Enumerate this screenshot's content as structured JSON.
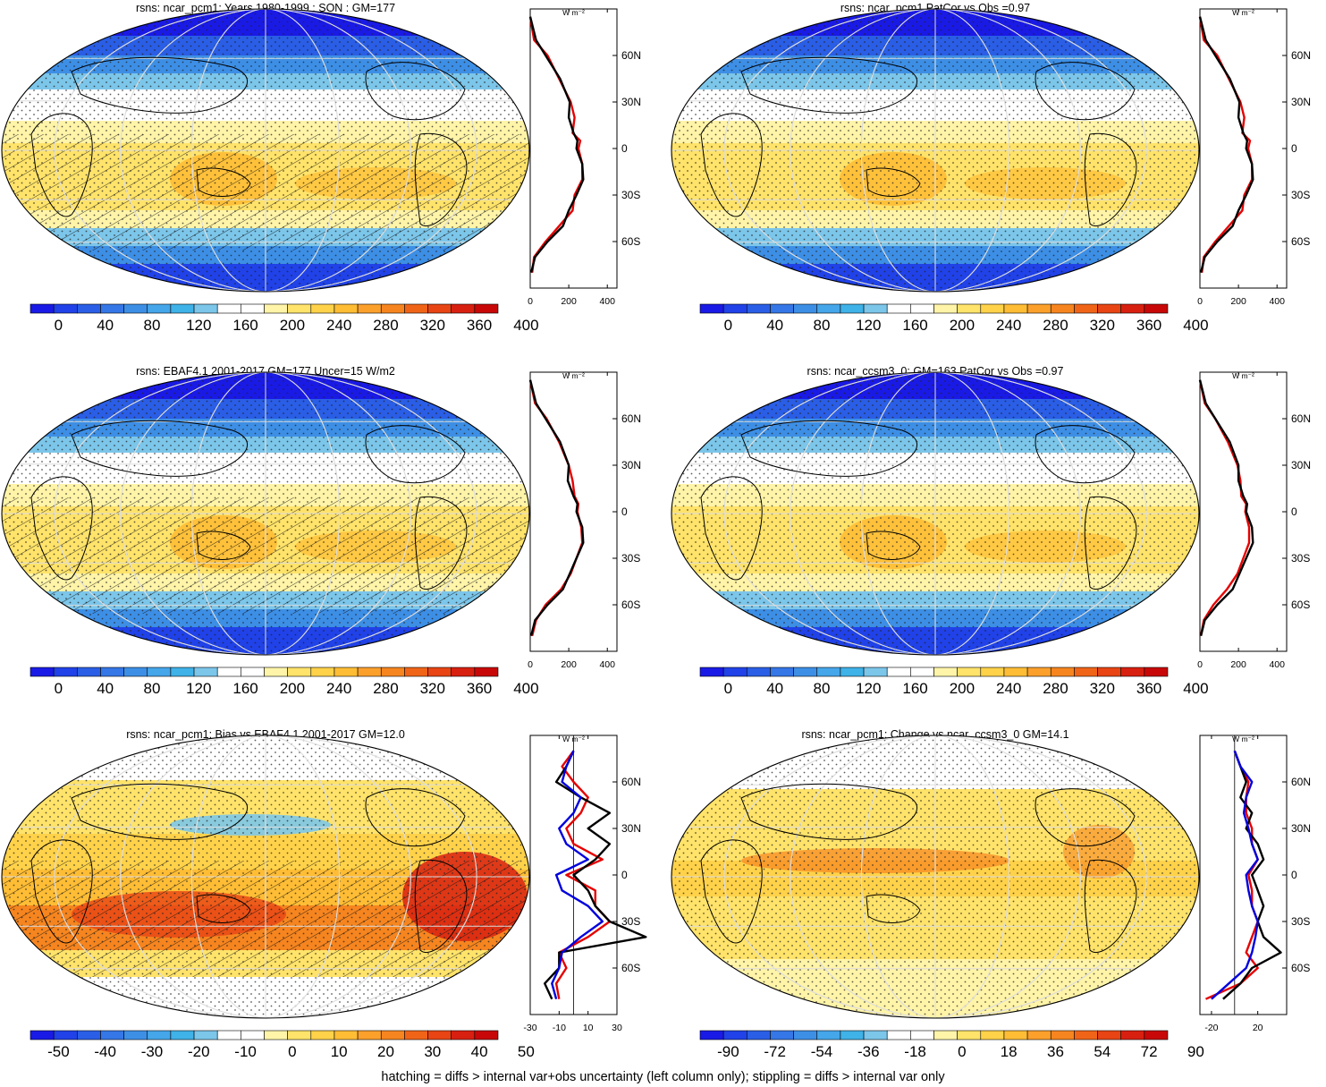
{
  "footnote": "hatching = diffs > internal var+obs uncertainty (left column only); stippling = diffs > internal var only",
  "colors": {
    "abs_scale": [
      "#1a1ae6",
      "#2042e8",
      "#2a5ee6",
      "#3577e6",
      "#3d8fe6",
      "#45a6ea",
      "#3fb2e8",
      "#7cc6ea",
      "#ffffff",
      "#ffffff",
      "#fff4a8",
      "#ffe36a",
      "#ffd24a",
      "#ffbd35",
      "#fca02c",
      "#f6851f",
      "#f06418",
      "#e84414",
      "#d82010",
      "#c80808"
    ],
    "diff_scale": [
      "#1a1ae6",
      "#2042e8",
      "#2a5ee6",
      "#3577e6",
      "#3d8fe6",
      "#45a6ea",
      "#3fb2e8",
      "#7cc6ea",
      "#ffffff",
      "#ffffff",
      "#fff4a8",
      "#ffe36a",
      "#ffd24a",
      "#ffbd35",
      "#fca02c",
      "#f6851f",
      "#f06418",
      "#e84414",
      "#d82010",
      "#c80808"
    ],
    "profile_model": "#000000",
    "profile_obs": "#e60000",
    "profile_other": "#0000dd"
  },
  "panels": [
    {
      "id": "model-son",
      "title": "rsns: ncar_pcm1: Years 1980-1999 : SON : GM=177",
      "kind": "absolute",
      "hatched": true,
      "colorbar_labels": [
        "0",
        "40",
        "80",
        "120",
        "160",
        "200",
        "240",
        "280",
        "320",
        "360",
        "400"
      ],
      "profile_unit": "W m⁻²",
      "profile_xticks": [
        "0",
        "200",
        "400"
      ],
      "profile_lat_labels": [
        "60N",
        "30N",
        "0",
        "30S",
        "60S"
      ]
    },
    {
      "id": "patcor-obs",
      "title": "rsns: ncar_pcm1 PatCor vs Obs =0.97",
      "kind": "absolute",
      "hatched": false,
      "colorbar_labels": [
        "0",
        "40",
        "80",
        "120",
        "160",
        "200",
        "240",
        "280",
        "320",
        "360",
        "400"
      ],
      "profile_unit": "W m⁻²",
      "profile_xticks": [
        "0",
        "200",
        "400"
      ],
      "profile_lat_labels": [
        "60N",
        "30N",
        "0",
        "30S",
        "60S"
      ]
    },
    {
      "id": "obs-ebaf",
      "title": "rsns: EBAF4.1 2001-2017 GM=177 Uncer=15 W/m2",
      "kind": "absolute",
      "hatched": true,
      "colorbar_labels": [
        "0",
        "40",
        "80",
        "120",
        "160",
        "200",
        "240",
        "280",
        "320",
        "360",
        "400"
      ],
      "profile_unit": "W m⁻²",
      "profile_xticks": [
        "0",
        "200",
        "400"
      ],
      "profile_lat_labels": [
        "60N",
        "30N",
        "0",
        "30S",
        "60S"
      ]
    },
    {
      "id": "ccsm3",
      "title": "rsns: ncar_ccsm3_0: GM=163 PatCor vs Obs =0.97",
      "kind": "absolute",
      "hatched": false,
      "colorbar_labels": [
        "0",
        "40",
        "80",
        "120",
        "160",
        "200",
        "240",
        "280",
        "320",
        "360",
        "400"
      ],
      "profile_unit": "W m⁻²",
      "profile_xticks": [
        "0",
        "200",
        "400"
      ],
      "profile_lat_labels": [
        "60N",
        "30N",
        "0",
        "30S",
        "60S"
      ]
    },
    {
      "id": "bias",
      "title": "rsns: ncar_pcm1: Bias vs EBAF4.1 2001-2017  GM=12.0",
      "kind": "bias",
      "hatched": true,
      "colorbar_labels": [
        "-50",
        "-40",
        "-30",
        "-20",
        "-10",
        "0",
        "10",
        "20",
        "30",
        "40",
        "50"
      ],
      "profile_unit": "W m⁻²",
      "profile_xticks": [
        "-30",
        "-10",
        "10",
        "30"
      ],
      "profile_lat_labels": [
        "60N",
        "30N",
        "0",
        "30S",
        "60S"
      ]
    },
    {
      "id": "change",
      "title": "rsns: ncar_pcm1: Change vs ncar_ccsm3_0 GM=14.1",
      "kind": "change",
      "hatched": false,
      "colorbar_labels": [
        "-90",
        "-72",
        "-54",
        "-36",
        "-18",
        "0",
        "18",
        "36",
        "54",
        "72",
        "90"
      ],
      "profile_unit": "W m⁻²",
      "profile_xticks": [
        "-20",
        "20"
      ],
      "profile_lat_labels": [
        "60N",
        "30N",
        "0",
        "30S",
        "60S"
      ]
    }
  ],
  "chart_data": [
    {
      "type": "line",
      "title": "rsns: ncar_pcm1: Years 1980-1999 : SON : GM=177",
      "xlabel": "W m⁻²",
      "x_ticks": [
        0,
        200,
        400
      ],
      "y_ticks": [
        "60N",
        "30N",
        "0",
        "30S",
        "60S"
      ],
      "xlim": [
        0,
        450
      ],
      "ylim": [
        -90,
        90
      ],
      "series": [
        {
          "latitude": [
            85,
            70,
            60,
            45,
            30,
            20,
            10,
            5,
            0,
            -10,
            -20,
            -30,
            -40,
            -50,
            -60,
            -70,
            -80
          ],
          "values": [
            0,
            20,
            90,
            150,
            210,
            230,
            220,
            260,
            250,
            270,
            270,
            230,
            220,
            150,
            80,
            20,
            10
          ]
        },
        {
          "latitude": [
            85,
            70,
            60,
            45,
            30,
            20,
            10,
            5,
            0,
            -10,
            -20,
            -30,
            -40,
            -50,
            -60,
            -70,
            -80
          ],
          "values": [
            0,
            30,
            80,
            155,
            205,
            200,
            225,
            245,
            240,
            270,
            275,
            240,
            200,
            170,
            90,
            25,
            5
          ]
        }
      ]
    },
    {
      "type": "line",
      "title": "rsns: ncar_pcm1 PatCor vs Obs =0.97",
      "xlabel": "W m⁻²",
      "x_ticks": [
        0,
        200,
        400
      ],
      "y_ticks": [
        "60N",
        "30N",
        "0",
        "30S",
        "60S"
      ],
      "xlim": [
        0,
        450
      ],
      "ylim": [
        -90,
        90
      ],
      "series": [
        {
          "latitude": [
            85,
            70,
            60,
            45,
            30,
            20,
            10,
            5,
            0,
            -10,
            -20,
            -30,
            -40,
            -50,
            -60,
            -70,
            -80
          ],
          "values": [
            0,
            20,
            90,
            150,
            210,
            230,
            220,
            260,
            250,
            270,
            270,
            230,
            220,
            150,
            80,
            20,
            10
          ]
        },
        {
          "latitude": [
            85,
            70,
            60,
            45,
            30,
            20,
            10,
            5,
            0,
            -10,
            -20,
            -30,
            -40,
            -50,
            -60,
            -70,
            -80
          ],
          "values": [
            0,
            30,
            80,
            155,
            205,
            200,
            225,
            245,
            240,
            270,
            275,
            240,
            200,
            170,
            90,
            25,
            5
          ]
        }
      ]
    },
    {
      "type": "line",
      "title": "rsns: EBAF4.1 2001-2017 GM=177 Uncer=15 W/m2",
      "xlabel": "W m⁻²",
      "x_ticks": [
        0,
        200,
        400
      ],
      "y_ticks": [
        "60N",
        "30N",
        "0",
        "30S",
        "60S"
      ],
      "xlim": [
        0,
        450
      ],
      "ylim": [
        -90,
        90
      ],
      "series": [
        {
          "latitude": [
            85,
            70,
            60,
            45,
            30,
            20,
            10,
            5,
            0,
            -10,
            -20,
            -30,
            -40,
            -50,
            -60,
            -70,
            -80
          ],
          "values": [
            0,
            25,
            85,
            150,
            200,
            220,
            230,
            250,
            245,
            265,
            270,
            240,
            210,
            160,
            80,
            30,
            10
          ]
        },
        {
          "latitude": [
            85,
            70,
            60,
            45,
            30,
            20,
            10,
            5,
            0,
            -10,
            -20,
            -30,
            -40,
            -50,
            -60,
            -70,
            -80
          ],
          "values": [
            0,
            30,
            80,
            155,
            200,
            195,
            225,
            245,
            240,
            270,
            275,
            240,
            205,
            170,
            90,
            25,
            5
          ]
        }
      ]
    },
    {
      "type": "line",
      "title": "rsns: ncar_ccsm3_0: GM=163 PatCor vs Obs =0.97",
      "xlabel": "W m⁻²",
      "x_ticks": [
        0,
        200,
        400
      ],
      "y_ticks": [
        "60N",
        "30N",
        "0",
        "30S",
        "60S"
      ],
      "xlim": [
        0,
        450
      ],
      "ylim": [
        -90,
        90
      ],
      "series": [
        {
          "latitude": [
            85,
            70,
            60,
            45,
            30,
            20,
            10,
            5,
            0,
            -10,
            -20,
            -30,
            -40,
            -50,
            -60,
            -70,
            -80
          ],
          "values": [
            0,
            25,
            80,
            145,
            195,
            210,
            215,
            240,
            235,
            255,
            255,
            225,
            195,
            140,
            70,
            20,
            5
          ]
        },
        {
          "latitude": [
            85,
            70,
            60,
            45,
            30,
            20,
            10,
            5,
            0,
            -10,
            -20,
            -30,
            -40,
            -50,
            -60,
            -70,
            -80
          ],
          "values": [
            0,
            30,
            80,
            155,
            200,
            200,
            225,
            245,
            240,
            270,
            275,
            240,
            205,
            170,
            90,
            25,
            5
          ]
        }
      ]
    },
    {
      "type": "line",
      "title": "rsns: ncar_pcm1: Bias vs EBAF4.1 2001-2017  GM=12.0",
      "xlabel": "W m⁻²",
      "x_ticks": [
        -30,
        -10,
        10,
        30
      ],
      "y_ticks": [
        "60N",
        "30N",
        "0",
        "30S",
        "60S"
      ],
      "xlim": [
        -30,
        30
      ],
      "ylim": [
        -90,
        90
      ],
      "series": [
        {
          "latitude": [
            80,
            70,
            60,
            50,
            40,
            30,
            20,
            10,
            0,
            -10,
            -20,
            -30,
            -40,
            -50,
            -60,
            -70,
            -80
          ],
          "values": [
            0,
            -8,
            0,
            10,
            5,
            -5,
            0,
            20,
            -5,
            15,
            15,
            25,
            10,
            -10,
            -5,
            -12,
            -10
          ]
        },
        {
          "latitude": [
            80,
            70,
            60,
            50,
            40,
            30,
            20,
            10,
            0,
            -10,
            -20,
            -30,
            -40,
            -50,
            -60,
            -70,
            -80
          ],
          "values": [
            0,
            -5,
            -12,
            5,
            25,
            10,
            25,
            15,
            0,
            10,
            15,
            25,
            50,
            -10,
            -10,
            -20,
            -15
          ]
        },
        {
          "latitude": [
            80,
            70,
            60,
            50,
            40,
            30,
            20,
            10,
            0,
            -10,
            -20,
            -30,
            -40,
            -50,
            -60,
            -70,
            -80
          ],
          "values": [
            0,
            -5,
            -8,
            5,
            0,
            -10,
            -5,
            10,
            -12,
            -8,
            10,
            20,
            5,
            -8,
            -10,
            -15,
            -12
          ]
        }
      ]
    },
    {
      "type": "line",
      "title": "rsns: ncar_pcm1: Change vs ncar_ccsm3_0 GM=14.1",
      "xlabel": "W m⁻²",
      "x_ticks": [
        -20,
        20
      ],
      "y_ticks": [
        "60N",
        "30N",
        "0",
        "30S",
        "60S"
      ],
      "xlim": [
        -30,
        45
      ],
      "ylim": [
        -90,
        90
      ],
      "series": [
        {
          "latitude": [
            80,
            70,
            60,
            50,
            40,
            30,
            20,
            10,
            0,
            -10,
            -20,
            -30,
            -40,
            -50,
            -60,
            -70,
            -80
          ],
          "values": [
            0,
            5,
            12,
            10,
            10,
            15,
            15,
            20,
            12,
            15,
            15,
            20,
            15,
            10,
            20,
            5,
            -25
          ]
        },
        {
          "latitude": [
            80,
            70,
            60,
            50,
            40,
            30,
            20,
            10,
            0,
            -10,
            -20,
            -30,
            -40,
            -50,
            -60,
            -70,
            -80
          ],
          "values": [
            0,
            5,
            10,
            5,
            15,
            10,
            20,
            25,
            15,
            20,
            25,
            20,
            25,
            40,
            15,
            5,
            -10
          ]
        },
        {
          "latitude": [
            80,
            70,
            60,
            50,
            40,
            30,
            20,
            10,
            0,
            -10,
            -20,
            -30,
            -40,
            -50,
            -60,
            -70,
            -80
          ],
          "values": [
            0,
            5,
            15,
            10,
            8,
            12,
            15,
            20,
            10,
            12,
            15,
            20,
            18,
            15,
            10,
            -5,
            -20
          ]
        }
      ]
    }
  ]
}
